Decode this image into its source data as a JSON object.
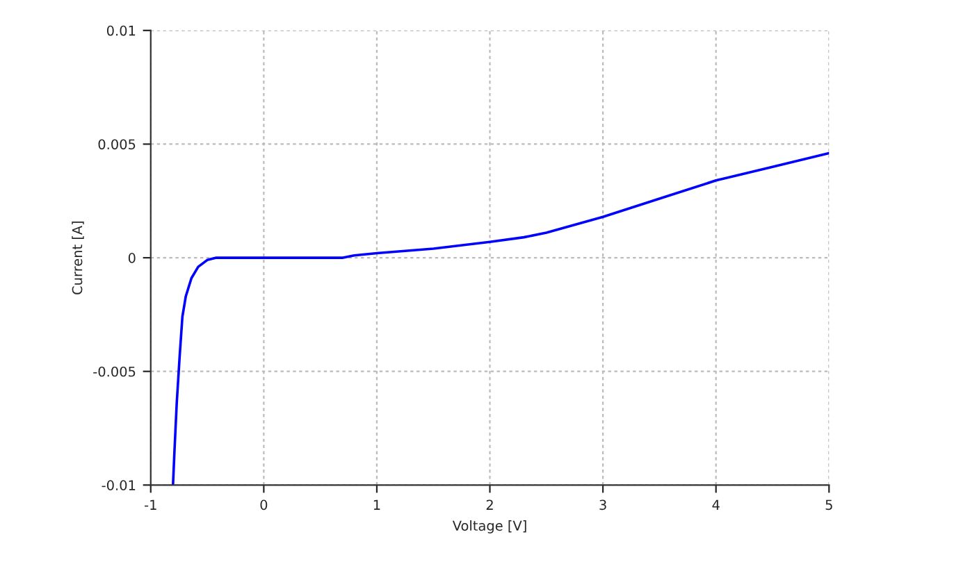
{
  "chart_data": {
    "type": "line",
    "xlabel": "Voltage [V]",
    "ylabel": "Current [A]",
    "series": [
      {
        "color": "#0000ff",
        "x": [
          -0.803,
          -0.79,
          -0.77,
          -0.745,
          -0.72,
          -0.69,
          -0.64,
          -0.58,
          -0.5,
          -0.42,
          0.0,
          0.5,
          0.7,
          0.8,
          1.0,
          1.5,
          2.0,
          2.3,
          2.5,
          3.0,
          3.5,
          4.0,
          4.5,
          5.0
        ],
        "values": [
          -0.01,
          -0.0085,
          -0.0064,
          -0.0044,
          -0.0026,
          -0.0017,
          -0.0009,
          -0.0004,
          -0.0001,
          0.0,
          0.0,
          0.0,
          0.0,
          0.0001,
          0.0002,
          0.0004,
          0.0007,
          0.0009,
          0.0011,
          0.0018,
          0.0026,
          0.0034,
          0.004,
          0.0046
        ]
      }
    ],
    "xlim": [
      -1,
      5
    ],
    "xticks": [
      -1,
      0,
      1,
      2,
      3,
      4,
      5
    ],
    "ylim": [
      -0.01,
      0.01
    ],
    "yticks": [
      {
        "value": -0.01,
        "label": "-0.01"
      },
      {
        "value": -0.005,
        "label": "-0.005"
      },
      0,
      {
        "value": 0.005,
        "label": "0.005"
      },
      {
        "value": 0.01,
        "label": "0.01"
      }
    ],
    "grid": true,
    "marker": "none",
    "line_style": "solid"
  }
}
